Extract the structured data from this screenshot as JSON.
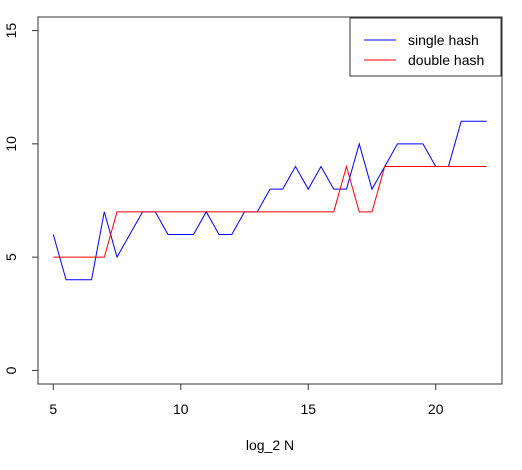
{
  "chart_data": {
    "type": "line",
    "xlabel": "log_2 N",
    "ylabel": "",
    "xlim": [
      4.4,
      22.6
    ],
    "ylim": [
      -0.6,
      15.6
    ],
    "xticks": [
      5,
      10,
      15,
      20
    ],
    "yticks": [
      0,
      5,
      10,
      15
    ],
    "x": [
      5,
      5.5,
      6,
      6.5,
      7,
      7.5,
      8,
      8.5,
      9,
      9.5,
      10,
      10.5,
      11,
      11.5,
      12,
      12.5,
      13,
      13.5,
      14,
      14.5,
      15,
      15.5,
      16,
      16.5,
      17,
      17.5,
      18,
      18.5,
      19,
      19.5,
      20,
      20.5,
      21,
      21.5,
      22
    ],
    "series": [
      {
        "name": "single hash",
        "color": "#0000ff",
        "values": [
          6,
          4,
          4,
          4,
          7,
          5,
          6,
          7,
          7,
          6,
          6,
          6,
          7,
          6,
          6,
          7,
          7,
          8,
          8,
          9,
          8,
          9,
          8,
          8,
          10,
          8,
          9,
          10,
          10,
          10,
          9,
          9,
          11,
          11,
          11
        ]
      },
      {
        "name": "double hash",
        "color": "#ff0000",
        "values": [
          5,
          5,
          5,
          5,
          5,
          7,
          7,
          7,
          7,
          7,
          7,
          7,
          7,
          7,
          7,
          7,
          7,
          7,
          7,
          7,
          7,
          7,
          7,
          9,
          7,
          7,
          9,
          9,
          9,
          9,
          9,
          9,
          9,
          9,
          9
        ]
      }
    ],
    "legend_position": "top-right",
    "grid": false
  }
}
